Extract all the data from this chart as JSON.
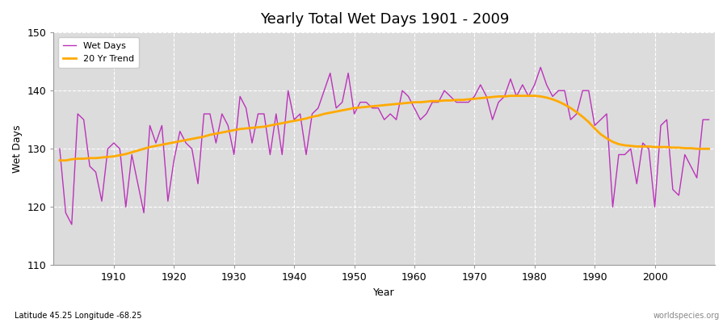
{
  "title": "Yearly Total Wet Days 1901 - 2009",
  "xlabel": "Year",
  "ylabel": "Wet Days",
  "subtitle": "Latitude 45.25 Longitude -68.25",
  "watermark": "worldspecies.org",
  "start_year": 1901,
  "end_year": 2009,
  "ylim": [
    110,
    150
  ],
  "yticks": [
    110,
    120,
    130,
    140,
    150
  ],
  "wet_days_color": "#bb33bb",
  "trend_color": "#ffaa00",
  "background_color": "#dcdcdc",
  "wet_days": [
    130,
    119,
    117,
    136,
    135,
    127,
    126,
    121,
    130,
    131,
    130,
    120,
    129,
    124,
    119,
    134,
    131,
    134,
    121,
    128,
    133,
    131,
    130,
    124,
    136,
    136,
    131,
    136,
    134,
    129,
    139,
    137,
    131,
    136,
    136,
    129,
    136,
    129,
    140,
    135,
    136,
    129,
    136,
    137,
    140,
    143,
    137,
    138,
    143,
    136,
    138,
    138,
    137,
    137,
    135,
    136,
    135,
    140,
    139,
    137,
    135,
    136,
    138,
    138,
    140,
    139,
    138,
    138,
    138,
    139,
    141,
    139,
    135,
    138,
    139,
    142,
    139,
    141,
    139,
    141,
    144,
    141,
    139,
    140,
    140,
    135,
    136,
    140,
    140,
    134,
    135,
    136,
    120,
    129,
    129,
    130,
    124,
    131,
    130,
    120,
    134,
    135,
    123,
    122,
    129,
    127,
    125,
    135,
    135
  ],
  "trend": [
    128.0,
    128.0,
    128.2,
    128.3,
    128.3,
    128.4,
    128.4,
    128.5,
    128.6,
    128.7,
    128.9,
    129.1,
    129.4,
    129.7,
    130.0,
    130.3,
    130.5,
    130.7,
    130.9,
    131.1,
    131.3,
    131.5,
    131.7,
    131.9,
    132.1,
    132.4,
    132.6,
    132.8,
    133.0,
    133.2,
    133.4,
    133.5,
    133.6,
    133.7,
    133.8,
    134.0,
    134.2,
    134.4,
    134.6,
    134.8,
    135.0,
    135.2,
    135.5,
    135.7,
    136.0,
    136.2,
    136.4,
    136.6,
    136.8,
    137.0,
    137.1,
    137.2,
    137.3,
    137.4,
    137.5,
    137.6,
    137.7,
    137.8,
    137.9,
    138.0,
    138.0,
    138.1,
    138.2,
    138.2,
    138.3,
    138.3,
    138.4,
    138.4,
    138.5,
    138.6,
    138.7,
    138.8,
    138.9,
    139.0,
    139.0,
    139.1,
    139.1,
    139.1,
    139.1,
    139.1,
    139.0,
    138.8,
    138.5,
    138.1,
    137.6,
    137.0,
    136.3,
    135.5,
    134.6,
    133.5,
    132.5,
    131.8,
    131.2,
    130.8,
    130.6,
    130.5,
    130.4,
    130.4,
    130.4,
    130.3,
    130.3,
    130.3,
    130.2,
    130.2,
    130.1,
    130.1,
    130.0,
    130.0,
    130.0
  ],
  "figsize": [
    9.0,
    4.0
  ],
  "dpi": 100
}
